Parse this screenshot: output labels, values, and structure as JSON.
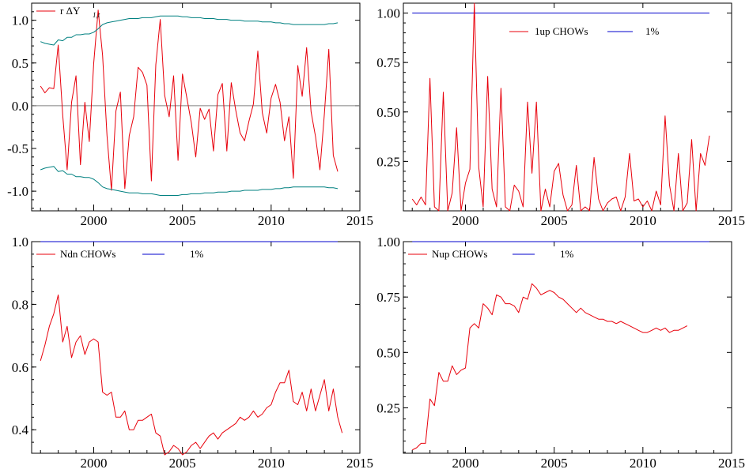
{
  "colors": {
    "series": "#e8000b",
    "bands": "#008080",
    "critical": "#0000cc",
    "zero": "#808080",
    "axis": "#000000"
  },
  "chart_data": [
    {
      "type": "line",
      "legend": {
        "placement": "top-left",
        "entries": [
          "r ΔY",
          "1,t"
        ]
      },
      "xlim": [
        1996.5,
        2015
      ],
      "ylim": [
        -1.23,
        1.2
      ],
      "xticks": [
        "2000",
        "2005",
        "2010",
        "2015"
      ],
      "yticks": [
        "1.0",
        "0.5",
        "0.0",
        "-0.5",
        "-1.0"
      ],
      "ytick_values": [
        1.0,
        0.5,
        0.0,
        -0.5,
        -1.0
      ],
      "zero_line": 0,
      "x_start": 1997.0,
      "x_step": 0.25,
      "series": [
        {
          "values": [
            0.23,
            0.15,
            0.21,
            0.2,
            0.71,
            -0.11,
            -0.75,
            0.04,
            0.35,
            -0.69,
            0.04,
            -0.42,
            0.5,
            1.12,
            0.59,
            -0.35,
            -0.99,
            -0.06,
            0.16,
            -0.97,
            -0.35,
            -0.13,
            0.45,
            0.39,
            0.24,
            -0.88,
            0.48,
            1.01,
            0.12,
            -0.13,
            0.35,
            -0.64,
            0.37,
            0.09,
            -0.2,
            -0.6,
            -0.03,
            -0.16,
            -0.04,
            -0.53,
            0.13,
            0.26,
            -0.53,
            0.27,
            -0.05,
            -0.32,
            -0.41,
            -0.18,
            0.02,
            0.64,
            -0.08,
            -0.32,
            0.09,
            0.25,
            0.04,
            -0.41,
            -0.13,
            -0.85,
            0.47,
            0.11,
            0.68,
            -0.07,
            -0.36,
            -0.75,
            -0.1,
            0.66,
            -0.58,
            -0.77
          ]
        },
        {
          "values": [
            0.75,
            0.73,
            0.72,
            0.71,
            0.77,
            0.76,
            0.8,
            0.8,
            0.83,
            0.83,
            0.84,
            0.84,
            0.86,
            0.9,
            0.95,
            0.97,
            0.98,
            0.99,
            1.0,
            1.01,
            1.02,
            1.02,
            1.02,
            1.03,
            1.03,
            1.03,
            1.04,
            1.05,
            1.05,
            1.05,
            1.05,
            1.05,
            1.04,
            1.04,
            1.03,
            1.03,
            1.03,
            1.02,
            1.02,
            1.02,
            1.01,
            1.01,
            1.01,
            1.0,
            1.0,
            1.0,
            0.99,
            0.99,
            0.99,
            0.99,
            0.98,
            0.98,
            0.98,
            0.97,
            0.97,
            0.96,
            0.96,
            0.95,
            0.95,
            0.95,
            0.95,
            0.95,
            0.95,
            0.95,
            0.95,
            0.96,
            0.96,
            0.97
          ]
        },
        {
          "values": [
            -0.75,
            -0.73,
            -0.72,
            -0.71,
            -0.77,
            -0.76,
            -0.8,
            -0.8,
            -0.83,
            -0.83,
            -0.84,
            -0.84,
            -0.86,
            -0.9,
            -0.95,
            -0.97,
            -0.98,
            -0.99,
            -1.0,
            -1.01,
            -1.02,
            -1.02,
            -1.02,
            -1.03,
            -1.03,
            -1.03,
            -1.04,
            -1.05,
            -1.05,
            -1.05,
            -1.05,
            -1.05,
            -1.04,
            -1.04,
            -1.03,
            -1.03,
            -1.03,
            -1.02,
            -1.02,
            -1.02,
            -1.01,
            -1.01,
            -1.01,
            -1.0,
            -1.0,
            -1.0,
            -0.99,
            -0.99,
            -0.99,
            -0.99,
            -0.98,
            -0.98,
            -0.98,
            -0.97,
            -0.97,
            -0.96,
            -0.96,
            -0.95,
            -0.95,
            -0.95,
            -0.95,
            -0.95,
            -0.95,
            -0.95,
            -0.95,
            -0.96,
            -0.96,
            -0.97
          ]
        }
      ]
    },
    {
      "type": "line",
      "legend": {
        "placement": "top-right",
        "entries": [
          "1up CHOWs",
          "1%"
        ]
      },
      "xlim": [
        1996.5,
        2015
      ],
      "ylim": [
        0.0,
        1.05
      ],
      "xticks": [
        "2000",
        "2005",
        "2010",
        "2015"
      ],
      "yticks": [
        "1.00",
        "0.75",
        "0.50",
        "0.25"
      ],
      "ytick_values": [
        1.0,
        0.75,
        0.5,
        0.25
      ],
      "critical_line": 1.0,
      "x_start": 1997.0,
      "x_step": 0.25,
      "series": [
        {
          "values": [
            0.06,
            0.03,
            0.07,
            0.03,
            0.67,
            0.02,
            0.0,
            0.6,
            0.0,
            0.09,
            0.42,
            0.0,
            0.14,
            0.21,
            1.05,
            0.22,
            0.02,
            0.68,
            0.11,
            0.02,
            0.62,
            0.02,
            0.0,
            0.13,
            0.1,
            0.02,
            0.55,
            0.19,
            0.55,
            0.0,
            0.11,
            0.02,
            0.2,
            0.24,
            0.08,
            0.0,
            0.03,
            0.23,
            0.0,
            0.02,
            0.0,
            0.27,
            0.06,
            0.0,
            0.04,
            0.06,
            0.07,
            0.0,
            0.07,
            0.29,
            0.05,
            0.06,
            0.02,
            0.05,
            0.0,
            0.1,
            0.03,
            0.48,
            0.13,
            0.0,
            0.29,
            0.0,
            0.04,
            0.36,
            0.0,
            0.29,
            0.23,
            0.38
          ]
        }
      ]
    },
    {
      "type": "line",
      "legend": {
        "placement": "top-left",
        "entries": [
          "Ndn CHOWs",
          "1%"
        ]
      },
      "xlim": [
        1996.5,
        2015
      ],
      "ylim": [
        0.325,
        1.0
      ],
      "xticks": [
        "2000",
        "2005",
        "2010",
        "2015"
      ],
      "yticks": [
        "1.0",
        "0.8",
        "0.6",
        "0.4"
      ],
      "ytick_values": [
        1.0,
        0.8,
        0.6,
        0.4
      ],
      "critical_line": 1.0,
      "x_start": 1997.0,
      "x_step": 0.25,
      "series": [
        {
          "values": [
            0.62,
            0.67,
            0.73,
            0.77,
            0.83,
            0.68,
            0.73,
            0.63,
            0.68,
            0.7,
            0.64,
            0.68,
            0.69,
            0.68,
            0.52,
            0.51,
            0.52,
            0.44,
            0.44,
            0.46,
            0.4,
            0.4,
            0.43,
            0.43,
            0.44,
            0.45,
            0.39,
            0.38,
            0.32,
            0.33,
            0.35,
            0.34,
            0.32,
            0.33,
            0.35,
            0.36,
            0.34,
            0.36,
            0.38,
            0.39,
            0.37,
            0.39,
            0.4,
            0.41,
            0.42,
            0.44,
            0.43,
            0.44,
            0.46,
            0.44,
            0.45,
            0.47,
            0.48,
            0.52,
            0.55,
            0.55,
            0.59,
            0.49,
            0.48,
            0.52,
            0.46,
            0.53,
            0.46,
            0.51,
            0.56,
            0.46,
            0.53,
            0.44,
            0.39
          ]
        }
      ]
    },
    {
      "type": "line",
      "legend": {
        "placement": "top-left",
        "entries": [
          "Nup CHOWs",
          "1%"
        ]
      },
      "xlim": [
        1996.5,
        2015
      ],
      "ylim": [
        0.045,
        1.0
      ],
      "xticks": [
        "2000",
        "2005",
        "2010",
        "2015"
      ],
      "yticks": [
        "1.00",
        "0.75",
        "0.50",
        "0.25"
      ],
      "ytick_values": [
        1.0,
        0.75,
        0.5,
        0.25
      ],
      "critical_line": 1.0,
      "x_start": 1997.0,
      "x_step": 0.25,
      "series": [
        {
          "values": [
            0.06,
            0.07,
            0.09,
            0.09,
            0.29,
            0.26,
            0.41,
            0.37,
            0.37,
            0.44,
            0.4,
            0.42,
            0.43,
            0.61,
            0.63,
            0.61,
            0.72,
            0.7,
            0.67,
            0.76,
            0.75,
            0.72,
            0.72,
            0.71,
            0.68,
            0.75,
            0.74,
            0.81,
            0.79,
            0.76,
            0.77,
            0.78,
            0.77,
            0.75,
            0.74,
            0.72,
            0.7,
            0.68,
            0.7,
            0.68,
            0.67,
            0.66,
            0.65,
            0.65,
            0.64,
            0.64,
            0.63,
            0.64,
            0.63,
            0.62,
            0.61,
            0.6,
            0.59,
            0.59,
            0.6,
            0.61,
            0.6,
            0.61,
            0.59,
            0.6,
            0.6,
            0.61,
            0.62
          ]
        }
      ]
    }
  ]
}
